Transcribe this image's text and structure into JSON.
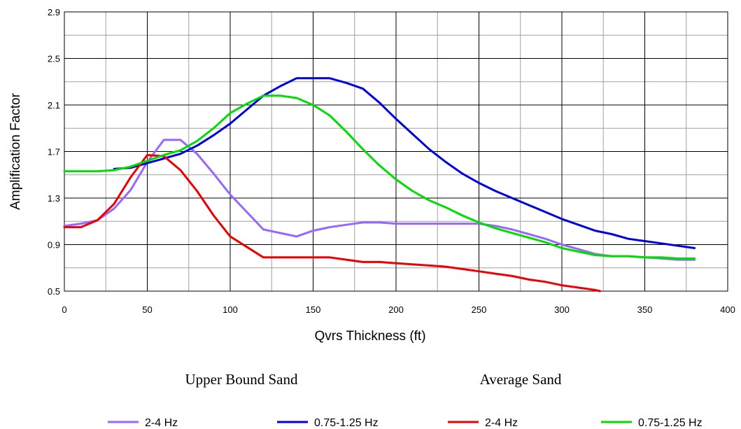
{
  "chart_data": {
    "type": "line",
    "title": "",
    "xlabel": "Qvrs Thickness  (ft)",
    "ylabel": "Amplification Factor",
    "xlim": [
      0,
      400
    ],
    "ylim": [
      0.5,
      2.9
    ],
    "x_ticks": [
      0,
      50,
      100,
      150,
      200,
      250,
      300,
      350,
      400
    ],
    "y_ticks": [
      "0.5",
      "0.9",
      "1.3",
      "1.7",
      "2.1",
      "2.5",
      "2.9"
    ],
    "grid": true,
    "legend_position": "bottom",
    "legend_groups": [
      {
        "label": "Upper Bound Sand",
        "series": [
          0,
          1
        ]
      },
      {
        "label": "Average Sand",
        "series": [
          2,
          3
        ]
      }
    ],
    "series": [
      {
        "name": "2-4 Hz",
        "group": "Upper Bound Sand",
        "color": "#9966ff",
        "points": [
          [
            0,
            1.06
          ],
          [
            10,
            1.08
          ],
          [
            20,
            1.11
          ],
          [
            30,
            1.21
          ],
          [
            40,
            1.37
          ],
          [
            50,
            1.61
          ],
          [
            60,
            1.8
          ],
          [
            70,
            1.8
          ],
          [
            80,
            1.68
          ],
          [
            90,
            1.51
          ],
          [
            100,
            1.33
          ],
          [
            110,
            1.18
          ],
          [
            120,
            1.03
          ],
          [
            130,
            1.0
          ],
          [
            140,
            0.97
          ],
          [
            150,
            1.02
          ],
          [
            160,
            1.05
          ],
          [
            170,
            1.07
          ],
          [
            180,
            1.09
          ],
          [
            190,
            1.09
          ],
          [
            200,
            1.08
          ],
          [
            210,
            1.08
          ],
          [
            220,
            1.08
          ],
          [
            230,
            1.08
          ],
          [
            240,
            1.08
          ],
          [
            250,
            1.08
          ],
          [
            260,
            1.06
          ],
          [
            270,
            1.03
          ],
          [
            280,
            0.99
          ],
          [
            290,
            0.95
          ],
          [
            300,
            0.9
          ],
          [
            310,
            0.86
          ],
          [
            320,
            0.82
          ],
          [
            330,
            0.8
          ],
          [
            340,
            0.8
          ],
          [
            350,
            0.79
          ],
          [
            360,
            0.78
          ],
          [
            370,
            0.77
          ],
          [
            380,
            0.77
          ]
        ]
      },
      {
        "name": "0.75-1.25 Hz",
        "group": "Upper Bound Sand",
        "color": "#0000dd",
        "points": [
          [
            30,
            1.55
          ],
          [
            40,
            1.56
          ],
          [
            50,
            1.6
          ],
          [
            60,
            1.64
          ],
          [
            70,
            1.68
          ],
          [
            80,
            1.75
          ],
          [
            90,
            1.84
          ],
          [
            100,
            1.94
          ],
          [
            110,
            2.06
          ],
          [
            120,
            2.18
          ],
          [
            130,
            2.26
          ],
          [
            140,
            2.33
          ],
          [
            150,
            2.33
          ],
          [
            160,
            2.33
          ],
          [
            170,
            2.29
          ],
          [
            180,
            2.24
          ],
          [
            190,
            2.12
          ],
          [
            200,
            1.98
          ],
          [
            210,
            1.85
          ],
          [
            220,
            1.72
          ],
          [
            230,
            1.61
          ],
          [
            240,
            1.51
          ],
          [
            250,
            1.43
          ],
          [
            260,
            1.36
          ],
          [
            270,
            1.3
          ],
          [
            280,
            1.24
          ],
          [
            290,
            1.18
          ],
          [
            300,
            1.12
          ],
          [
            310,
            1.07
          ],
          [
            320,
            1.02
          ],
          [
            330,
            0.99
          ],
          [
            340,
            0.95
          ],
          [
            350,
            0.93
          ],
          [
            360,
            0.91
          ],
          [
            370,
            0.89
          ],
          [
            380,
            0.87
          ]
        ]
      },
      {
        "name": "2-4 Hz",
        "group": "Average Sand",
        "color": "#ee0000",
        "points": [
          [
            0,
            1.05
          ],
          [
            10,
            1.05
          ],
          [
            20,
            1.11
          ],
          [
            30,
            1.25
          ],
          [
            40,
            1.48
          ],
          [
            50,
            1.67
          ],
          [
            60,
            1.66
          ],
          [
            70,
            1.54
          ],
          [
            80,
            1.36
          ],
          [
            90,
            1.15
          ],
          [
            100,
            0.97
          ],
          [
            110,
            0.88
          ],
          [
            120,
            0.79
          ],
          [
            130,
            0.79
          ],
          [
            140,
            0.79
          ],
          [
            150,
            0.79
          ],
          [
            160,
            0.79
          ],
          [
            170,
            0.77
          ],
          [
            180,
            0.75
          ],
          [
            190,
            0.75
          ],
          [
            200,
            0.74
          ],
          [
            210,
            0.73
          ],
          [
            220,
            0.72
          ],
          [
            230,
            0.71
          ],
          [
            240,
            0.69
          ],
          [
            250,
            0.67
          ],
          [
            260,
            0.65
          ],
          [
            270,
            0.63
          ],
          [
            280,
            0.6
          ],
          [
            290,
            0.58
          ],
          [
            300,
            0.55
          ],
          [
            310,
            0.53
          ],
          [
            320,
            0.51
          ],
          [
            323,
            0.5
          ]
        ]
      },
      {
        "name": "0.75-1.25 Hz",
        "group": "Average Sand",
        "color": "#00dd00",
        "points": [
          [
            0,
            1.53
          ],
          [
            10,
            1.53
          ],
          [
            20,
            1.53
          ],
          [
            30,
            1.54
          ],
          [
            40,
            1.57
          ],
          [
            50,
            1.62
          ],
          [
            60,
            1.67
          ],
          [
            70,
            1.71
          ],
          [
            80,
            1.79
          ],
          [
            90,
            1.9
          ],
          [
            100,
            2.03
          ],
          [
            110,
            2.11
          ],
          [
            120,
            2.18
          ],
          [
            130,
            2.18
          ],
          [
            140,
            2.16
          ],
          [
            150,
            2.1
          ],
          [
            160,
            2.01
          ],
          [
            170,
            1.87
          ],
          [
            180,
            1.72
          ],
          [
            190,
            1.58
          ],
          [
            200,
            1.46
          ],
          [
            210,
            1.36
          ],
          [
            220,
            1.28
          ],
          [
            230,
            1.22
          ],
          [
            240,
            1.15
          ],
          [
            250,
            1.09
          ],
          [
            260,
            1.04
          ],
          [
            270,
            1.0
          ],
          [
            280,
            0.96
          ],
          [
            290,
            0.92
          ],
          [
            300,
            0.87
          ],
          [
            310,
            0.84
          ],
          [
            320,
            0.81
          ],
          [
            330,
            0.8
          ],
          [
            340,
            0.8
          ],
          [
            350,
            0.79
          ],
          [
            360,
            0.79
          ],
          [
            370,
            0.78
          ],
          [
            380,
            0.78
          ]
        ]
      }
    ]
  }
}
